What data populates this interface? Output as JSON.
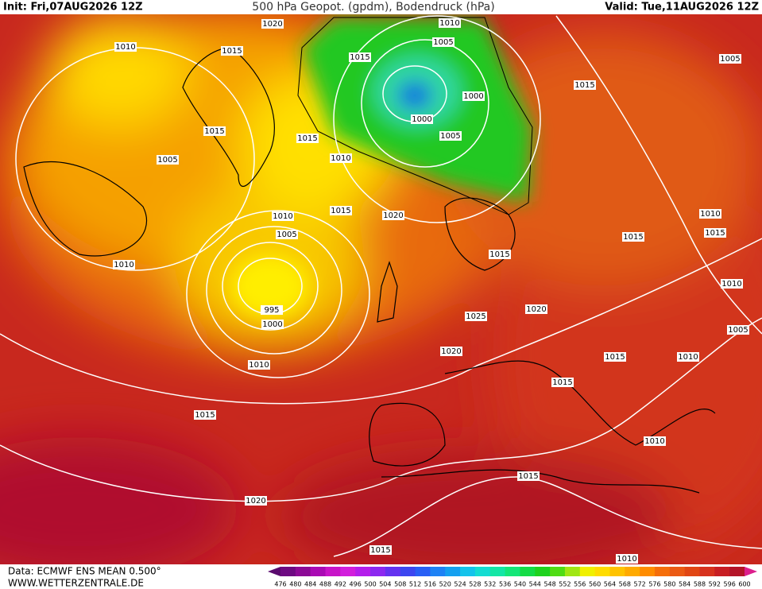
{
  "header": {
    "init": "Init: Fri,07AUG2026 12Z",
    "title": "500 hPa Geopot. (gpdm), Bodendruck (hPa)",
    "valid": "Valid: Tue,11AUG2026 12Z"
  },
  "isobar_labels": [
    "1020",
    "1015",
    "1010",
    "1015",
    "1010",
    "1005",
    "1000",
    "1000",
    "1005",
    "1015",
    "1015",
    "1010",
    "1005",
    "1015",
    "1005",
    "1015",
    "1020",
    "1010",
    "1005",
    "1010",
    "995",
    "1000",
    "1010",
    "1015",
    "1015",
    "1010",
    "1015",
    "1010",
    "1020",
    "1025",
    "1020",
    "1005",
    "1015",
    "1010",
    "1015",
    "1015",
    "1010",
    "1015",
    "1020",
    "1015",
    "1010"
  ],
  "legend": {
    "ticks": [
      476,
      480,
      484,
      488,
      492,
      496,
      500,
      504,
      508,
      512,
      516,
      520,
      524,
      528,
      532,
      536,
      540,
      544,
      548,
      552,
      556,
      560,
      564,
      568,
      572,
      576,
      580,
      584,
      588,
      592,
      596,
      600
    ]
  },
  "footer": {
    "data": "Data: ECMWF ENS MEAN 0.500°",
    "site": "WWW.WETTERZENTRALE.DE"
  }
}
